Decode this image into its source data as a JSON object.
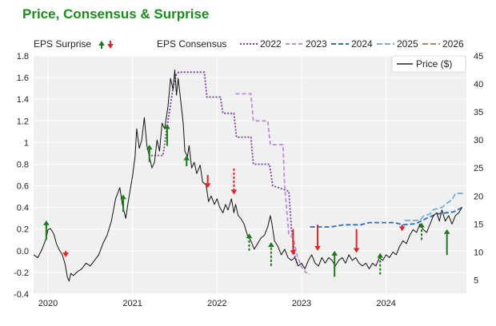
{
  "chart_data": {
    "type": "line",
    "title": "Price, Consensus & Surprise",
    "colors": {
      "title": "#1e8a1e",
      "plot_bg": "#f0f0f0",
      "grid": "#ffffff",
      "price": "#111111",
      "up_arrow": "#1b7a1b",
      "down_arrow": "#e02424",
      "series_2022": "#7b3f98",
      "series_2023": "#b98fd0",
      "series_2024": "#2f6fb0",
      "series_2025": "#6ab0e0",
      "series_2026": "#b08a55"
    },
    "legend": {
      "surprise_label": "EPS Surprise",
      "consensus_label": "EPS Consensus",
      "price_label": "Price ($)",
      "series_names": [
        "2022",
        "2023",
        "2024",
        "2025",
        "2026"
      ]
    },
    "left_axis": {
      "range": [
        -0.4,
        1.8
      ],
      "ticks": [
        "-0.4",
        "-0.2",
        "0.0",
        "0.2",
        "0.4",
        "0.6",
        "0.8",
        "1",
        "1.2",
        "1.4",
        "1.6",
        "1.8"
      ],
      "tick_values": [
        -0.4,
        -0.2,
        0.0,
        0.2,
        0.4,
        0.6,
        0.8,
        1.0,
        1.2,
        1.4,
        1.6,
        1.8
      ]
    },
    "right_axis": {
      "range": [
        2.5,
        45
      ],
      "ticks": [
        "5",
        "10",
        "15",
        "20",
        "25",
        "30",
        "35",
        "40",
        "45"
      ],
      "tick_values": [
        5,
        10,
        15,
        20,
        25,
        30,
        35,
        40,
        45
      ]
    },
    "x_axis": {
      "range": [
        2019.83,
        2024.95
      ],
      "ticks": [
        "2020",
        "2021",
        "2022",
        "2023",
        "2024"
      ],
      "tick_values": [
        2020,
        2021,
        2022,
        2023,
        2024
      ]
    },
    "price": [
      [
        2019.83,
        9.5
      ],
      [
        2019.88,
        9.0
      ],
      [
        2019.93,
        10.5
      ],
      [
        2019.98,
        12.5
      ],
      [
        2020.0,
        14.0
      ],
      [
        2020.03,
        14.2
      ],
      [
        2020.07,
        13.2
      ],
      [
        2020.1,
        11.5
      ],
      [
        2020.13,
        10.5
      ],
      [
        2020.17,
        9.5
      ],
      [
        2020.2,
        8.0
      ],
      [
        2020.23,
        5.5
      ],
      [
        2020.25,
        4.8
      ],
      [
        2020.27,
        6.2
      ],
      [
        2020.3,
        5.8
      ],
      [
        2020.35,
        6.5
      ],
      [
        2020.4,
        7.0
      ],
      [
        2020.45,
        8.0
      ],
      [
        2020.5,
        7.5
      ],
      [
        2020.55,
        8.5
      ],
      [
        2020.6,
        9.5
      ],
      [
        2020.65,
        11.5
      ],
      [
        2020.7,
        13.0
      ],
      [
        2020.75,
        15.5
      ],
      [
        2020.8,
        19.5
      ],
      [
        2020.85,
        21.5
      ],
      [
        2020.88,
        18.5
      ],
      [
        2020.92,
        16.0
      ],
      [
        2020.95,
        19.0
      ],
      [
        2021.0,
        23.5
      ],
      [
        2021.03,
        27.0
      ],
      [
        2021.05,
        32.0
      ],
      [
        2021.08,
        28.5
      ],
      [
        2021.11,
        30.0
      ],
      [
        2021.14,
        34.0
      ],
      [
        2021.17,
        29.0
      ],
      [
        2021.2,
        27.0
      ],
      [
        2021.23,
        25.0
      ],
      [
        2021.26,
        26.0
      ],
      [
        2021.29,
        30.0
      ],
      [
        2021.32,
        28.0
      ],
      [
        2021.35,
        33.0
      ],
      [
        2021.38,
        32.0
      ],
      [
        2021.42,
        36.0
      ],
      [
        2021.45,
        41.0
      ],
      [
        2021.48,
        39.0
      ],
      [
        2021.5,
        42.5
      ],
      [
        2021.52,
        38.0
      ],
      [
        2021.54,
        41.0
      ],
      [
        2021.57,
        37.0
      ],
      [
        2021.6,
        33.0
      ],
      [
        2021.62,
        28.0
      ],
      [
        2021.65,
        27.0
      ],
      [
        2021.67,
        29.0
      ],
      [
        2021.7,
        25.0
      ],
      [
        2021.73,
        26.0
      ],
      [
        2021.76,
        24.0
      ],
      [
        2021.8,
        25.5
      ],
      [
        2021.83,
        22.5
      ],
      [
        2021.87,
        22.0
      ],
      [
        2021.9,
        19.0
      ],
      [
        2021.93,
        20.0
      ],
      [
        2021.97,
        18.5
      ],
      [
        2022.0,
        19.5
      ],
      [
        2022.03,
        18.0
      ],
      [
        2022.07,
        17.0
      ],
      [
        2022.1,
        18.5
      ],
      [
        2022.13,
        17.5
      ],
      [
        2022.17,
        19.5
      ],
      [
        2022.2,
        17.0
      ],
      [
        2022.22,
        18.5
      ],
      [
        2022.25,
        16.5
      ],
      [
        2022.28,
        16.0
      ],
      [
        2022.32,
        15.0
      ],
      [
        2022.36,
        13.0
      ],
      [
        2022.4,
        12.0
      ],
      [
        2022.44,
        10.5
      ],
      [
        2022.48,
        11.5
      ],
      [
        2022.52,
        12.5
      ],
      [
        2022.56,
        13.0
      ],
      [
        2022.6,
        14.5
      ],
      [
        2022.63,
        16.5
      ],
      [
        2022.65,
        15.0
      ],
      [
        2022.68,
        12.0
      ],
      [
        2022.72,
        11.0
      ],
      [
        2022.76,
        9.5
      ],
      [
        2022.8,
        10.5
      ],
      [
        2022.84,
        9.0
      ],
      [
        2022.88,
        8.5
      ],
      [
        2022.92,
        9.0
      ],
      [
        2022.96,
        7.5
      ],
      [
        2023.0,
        8.0
      ],
      [
        2023.04,
        7.0
      ],
      [
        2023.08,
        8.5
      ],
      [
        2023.12,
        9.5
      ],
      [
        2023.16,
        8.0
      ],
      [
        2023.2,
        7.5
      ],
      [
        2023.24,
        9.0
      ],
      [
        2023.28,
        8.0
      ],
      [
        2023.32,
        9.0
      ],
      [
        2023.36,
        8.5
      ],
      [
        2023.4,
        7.5
      ],
      [
        2023.44,
        8.5
      ],
      [
        2023.48,
        9.0
      ],
      [
        2023.52,
        8.0
      ],
      [
        2023.56,
        9.5
      ],
      [
        2023.6,
        8.5
      ],
      [
        2023.64,
        9.0
      ],
      [
        2023.68,
        8.0
      ],
      [
        2023.72,
        7.5
      ],
      [
        2023.76,
        8.0
      ],
      [
        2023.8,
        7.0
      ],
      [
        2023.84,
        8.0
      ],
      [
        2023.88,
        7.5
      ],
      [
        2023.92,
        9.0
      ],
      [
        2023.96,
        8.5
      ],
      [
        2024.0,
        9.5
      ],
      [
        2024.04,
        9.0
      ],
      [
        2024.08,
        10.0
      ],
      [
        2024.12,
        9.5
      ],
      [
        2024.16,
        11.0
      ],
      [
        2024.2,
        12.0
      ],
      [
        2024.24,
        11.5
      ],
      [
        2024.28,
        13.0
      ],
      [
        2024.32,
        14.0
      ],
      [
        2024.36,
        13.5
      ],
      [
        2024.4,
        15.0
      ],
      [
        2024.44,
        14.0
      ],
      [
        2024.48,
        13.5
      ],
      [
        2024.52,
        15.0
      ],
      [
        2024.56,
        16.5
      ],
      [
        2024.6,
        17.0
      ],
      [
        2024.63,
        15.5
      ],
      [
        2024.66,
        17.5
      ],
      [
        2024.7,
        15.5
      ],
      [
        2024.74,
        16.5
      ],
      [
        2024.78,
        15.0
      ],
      [
        2024.82,
        16.5
      ],
      [
        2024.86,
        17.0
      ],
      [
        2024.9,
        18.0
      ]
    ],
    "consensus": [
      {
        "name": "2022",
        "points": [
          [
            2021.22,
            0.88
          ],
          [
            2021.36,
            0.88
          ],
          [
            2021.38,
            0.98
          ],
          [
            2021.4,
            1.1
          ],
          [
            2021.42,
            1.2
          ],
          [
            2021.44,
            1.3
          ],
          [
            2021.46,
            1.4
          ],
          [
            2021.48,
            1.5
          ],
          [
            2021.5,
            1.58
          ],
          [
            2021.52,
            1.63
          ],
          [
            2021.55,
            1.65
          ],
          [
            2021.85,
            1.65
          ],
          [
            2021.88,
            1.42
          ],
          [
            2022.04,
            1.42
          ],
          [
            2022.07,
            1.27
          ],
          [
            2022.2,
            1.27
          ],
          [
            2022.23,
            1.05
          ],
          [
            2022.4,
            1.05
          ],
          [
            2022.43,
            0.8
          ],
          [
            2022.62,
            0.8
          ],
          [
            2022.66,
            0.6
          ],
          [
            2022.85,
            0.55
          ],
          [
            2022.88,
            0.2
          ],
          [
            2022.92,
            -0.05
          ],
          [
            2022.95,
            -0.12
          ]
        ]
      },
      {
        "name": "2023",
        "points": [
          [
            2022.22,
            1.45
          ],
          [
            2022.4,
            1.45
          ],
          [
            2022.43,
            1.2
          ],
          [
            2022.6,
            1.2
          ],
          [
            2022.63,
            0.98
          ],
          [
            2022.78,
            0.98
          ],
          [
            2022.8,
            0.6
          ],
          [
            2022.85,
            0.15
          ],
          [
            2022.9,
            0.12
          ],
          [
            2022.95,
            -0.05
          ],
          [
            2023.0,
            -0.15
          ],
          [
            2023.05,
            -0.2
          ],
          [
            2023.1,
            -0.22
          ]
        ]
      },
      {
        "name": "2024",
        "points": [
          [
            2023.1,
            0.22
          ],
          [
            2023.35,
            0.22
          ],
          [
            2023.5,
            0.24
          ],
          [
            2023.7,
            0.24
          ],
          [
            2023.8,
            0.26
          ],
          [
            2024.1,
            0.26
          ],
          [
            2024.2,
            0.24
          ],
          [
            2024.35,
            0.25
          ],
          [
            2024.48,
            0.3
          ],
          [
            2024.6,
            0.34
          ],
          [
            2024.8,
            0.36
          ],
          [
            2024.9,
            0.4
          ]
        ]
      },
      {
        "name": "2025",
        "points": [
          [
            2024.22,
            0.28
          ],
          [
            2024.4,
            0.28
          ],
          [
            2024.44,
            0.32
          ],
          [
            2024.52,
            0.34
          ],
          [
            2024.56,
            0.38
          ],
          [
            2024.66,
            0.4
          ],
          [
            2024.72,
            0.44
          ],
          [
            2024.78,
            0.47
          ],
          [
            2024.82,
            0.53
          ],
          [
            2024.92,
            0.53
          ]
        ]
      },
      {
        "name": "2026",
        "points": []
      }
    ],
    "surprises": [
      {
        "x": 2019.98,
        "dir": "up",
        "from": 0.1,
        "to": 0.28,
        "dashed": false
      },
      {
        "x": 2020.21,
        "dir": "down",
        "from": 0.0,
        "to": -0.06,
        "dashed": false
      },
      {
        "x": 2020.89,
        "dir": "up",
        "from": 0.36,
        "to": 0.52,
        "dashed": false
      },
      {
        "x": 2021.2,
        "dir": "up",
        "from": 0.82,
        "to": 0.98,
        "dashed": false
      },
      {
        "x": 2021.41,
        "dir": "up",
        "from": 0.97,
        "to": 1.17,
        "dashed": false
      },
      {
        "x": 2021.64,
        "dir": "up",
        "from": 0.78,
        "to": 0.88,
        "dashed": false
      },
      {
        "x": 2021.89,
        "dir": "down",
        "from": 0.7,
        "to": 0.58,
        "dashed": false
      },
      {
        "x": 2022.2,
        "dir": "down",
        "from": 0.76,
        "to": 0.52,
        "dashed": true
      },
      {
        "x": 2022.38,
        "dir": "up",
        "from": 0.0,
        "to": 0.16,
        "dashed": true
      },
      {
        "x": 2022.64,
        "dir": "up",
        "from": -0.14,
        "to": 0.08,
        "dashed": true
      },
      {
        "x": 2022.9,
        "dir": "down",
        "from": 0.2,
        "to": -0.04,
        "dashed": false
      },
      {
        "x": 2023.19,
        "dir": "down",
        "from": 0.24,
        "to": 0.0,
        "dashed": false
      },
      {
        "x": 2023.39,
        "dir": "up",
        "from": -0.24,
        "to": 0.0,
        "dashed": false
      },
      {
        "x": 2023.65,
        "dir": "down",
        "from": 0.2,
        "to": -0.02,
        "dashed": false
      },
      {
        "x": 2023.93,
        "dir": "up",
        "from": -0.22,
        "to": -0.02,
        "dashed": true
      },
      {
        "x": 2024.19,
        "dir": "down",
        "from": 0.24,
        "to": 0.18,
        "dashed": false
      },
      {
        "x": 2024.42,
        "dir": "up",
        "from": 0.1,
        "to": 0.26,
        "dashed": true
      },
      {
        "x": 2024.72,
        "dir": "up",
        "from": -0.04,
        "to": 0.2,
        "dashed": false
      }
    ]
  }
}
